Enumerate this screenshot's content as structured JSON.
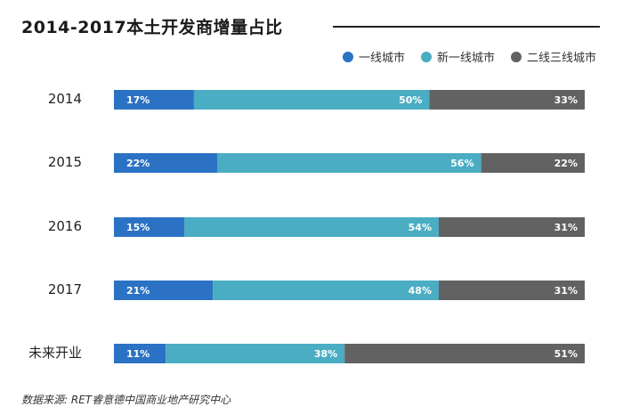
{
  "title": "2014-2017本土开发商增量占比",
  "source": "数据来源: RET睿意德中国商业地产研究中心",
  "colors": {
    "tier1": "#2b72c4",
    "new_tier1": "#4aadc3",
    "tier23": "#626262",
    "label_text": "#ffffff"
  },
  "chart_data": {
    "type": "bar",
    "orientation": "horizontal",
    "stacked": true,
    "title": "2014-2017本土开发商增量占比",
    "categories": [
      "2014",
      "2015",
      "2016",
      "2017",
      "未来开业"
    ],
    "series": [
      {
        "name": "一线城市",
        "values": [
          17,
          22,
          15,
          21,
          11
        ],
        "labels": [
          "17%",
          "22%",
          "15%",
          "21%",
          "11%"
        ]
      },
      {
        "name": "新一线城市",
        "values": [
          50,
          56,
          54,
          48,
          38
        ],
        "labels": [
          "50%",
          "56%",
          "54%",
          "48%",
          "38%"
        ]
      },
      {
        "name": "二线三线城市",
        "values": [
          33,
          22,
          31,
          31,
          51
        ],
        "labels": [
          "33%",
          "22%",
          "31%",
          "31%",
          "51%"
        ]
      }
    ],
    "xlim": [
      0,
      100
    ],
    "legend": "top-right",
    "grid": false
  }
}
